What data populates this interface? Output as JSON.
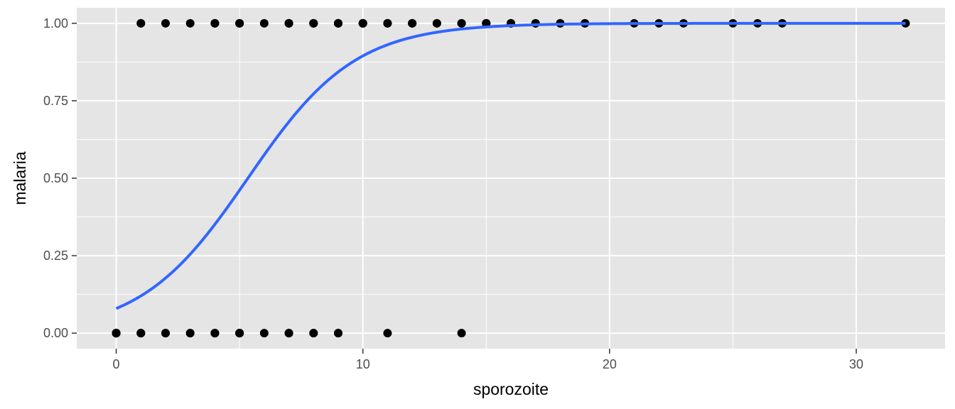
{
  "chart_data": {
    "type": "scatter",
    "title": "",
    "xlabel": "sporozoite",
    "ylabel": "malaria",
    "xlim": [
      -1.6,
      33.6
    ],
    "ylim": [
      -0.05,
      1.05
    ],
    "x_ticks": [
      0,
      10,
      20,
      30
    ],
    "x_tick_labels": [
      "0",
      "10",
      "20",
      "30"
    ],
    "y_ticks": [
      0,
      0.25,
      0.5,
      0.75,
      1.0
    ],
    "y_tick_labels": [
      "0.00",
      "0.25",
      "0.50",
      "0.75",
      "1.00"
    ],
    "grid": true,
    "legend": "none",
    "colors": {
      "panel": "#e5e5e5",
      "grid": "#ffffff",
      "points": "#000000",
      "curve": "#3366ff"
    },
    "series": [
      {
        "kind": "points",
        "x": [
          0,
          0,
          0,
          0,
          0,
          0,
          0,
          0,
          0,
          0,
          1,
          1,
          1,
          2,
          2,
          3,
          3,
          4,
          4,
          4,
          5,
          5,
          5,
          5,
          6,
          7,
          7,
          7,
          8,
          8,
          9,
          9,
          11,
          14,
          1,
          1,
          2,
          3,
          4,
          4,
          4,
          5,
          5,
          5,
          6,
          7,
          7,
          7,
          7,
          8,
          8,
          8,
          8,
          9,
          9,
          9,
          9,
          10,
          10,
          10,
          10,
          11,
          11,
          11,
          12,
          12,
          12,
          13,
          13,
          14,
          14,
          15,
          15,
          15,
          16,
          16,
          16,
          17,
          17,
          18,
          18,
          19,
          19,
          21,
          22,
          23,
          25,
          26,
          27,
          32
        ],
        "y": [
          0,
          0,
          0,
          0,
          0,
          0,
          0,
          0,
          0,
          0,
          0,
          0,
          0,
          0,
          0,
          0,
          0,
          0,
          0,
          0,
          0,
          0,
          0,
          0,
          0,
          0,
          0,
          0,
          0,
          0,
          0,
          0,
          0,
          0,
          1,
          1,
          1,
          1,
          1,
          1,
          1,
          1,
          1,
          1,
          1,
          1,
          1,
          1,
          1,
          1,
          1,
          1,
          1,
          1,
          1,
          1,
          1,
          1,
          1,
          1,
          1,
          1,
          1,
          1,
          1,
          1,
          1,
          1,
          1,
          1,
          1,
          1,
          1,
          1,
          1,
          1,
          1,
          1,
          1,
          1,
          1,
          1,
          1,
          1,
          1,
          1,
          1,
          1,
          1,
          1
        ]
      },
      {
        "kind": "logistic-fit",
        "intercept": -2.45,
        "slope": 0.459,
        "x_range": [
          0,
          32
        ]
      }
    ]
  }
}
